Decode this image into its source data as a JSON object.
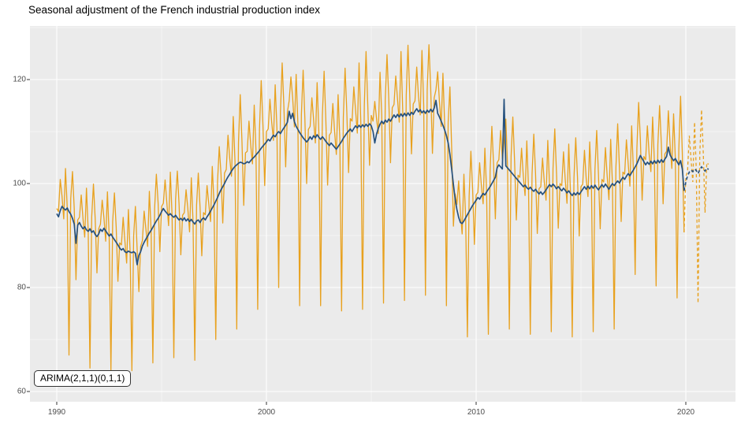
{
  "title": "Seasonal adjustment of the French industrial production index",
  "annotation": "ARIMA(2,1,1)(0,1,1)",
  "colors": {
    "panel_background": "#EBEBEB",
    "gridline": "#FFFFFF",
    "raw_series": "#E8A11E",
    "adjusted_series": "#26517E",
    "tick_text": "#4D4D4D",
    "tick_mark": "#333333",
    "title_text": "#000000"
  },
  "chart_data": {
    "type": "line",
    "title": "Seasonal adjustment of the French industrial production index",
    "annotation": "ARIMA(2,1,1)(0,1,1)",
    "xlabel": "",
    "ylabel": "",
    "x_tick_labels": [
      "1990",
      "2000",
      "2010",
      "2020"
    ],
    "y_tick_labels": [
      "120",
      "100",
      "80",
      "60"
    ],
    "x_major": [
      1990,
      2000,
      2010,
      2020
    ],
    "x_minor": [
      1995,
      2005,
      2015
    ],
    "y_major_values": [
      120,
      100,
      80,
      60
    ],
    "y_minor_values": [
      130,
      110,
      90,
      70
    ],
    "xlim": [
      1988.7,
      2022.4
    ],
    "ylim": [
      58,
      130.3
    ],
    "grid": "on",
    "legend_position": "none",
    "start_year": 1990,
    "points_per_year": 12,
    "forecast_start_year": 2020,
    "series": [
      {
        "name": "raw_unadjusted_index",
        "color": "#E8A11E",
        "style": "solid"
      },
      {
        "name": "seasonally_adjusted_index",
        "color": "#26517E",
        "style": "solid"
      },
      {
        "name": "raw_forecast",
        "color": "#E8A11E",
        "style": "dashed"
      },
      {
        "name": "seasonally_adjusted_forecast",
        "color": "#26517E",
        "style": "dashed"
      }
    ],
    "raw": [
      95.2,
      94.6,
      100.8,
      97.6,
      93.2,
      102.9,
      95.3,
      67.0,
      97.1,
      102.3,
      95.2,
      81.5,
      93.0,
      93.5,
      97.8,
      93.3,
      89.7,
      99.1,
      90.8,
      64.5,
      93.6,
      99.9,
      93.2,
      82.8,
      91.3,
      92.2,
      96.8,
      93.4,
      88.9,
      98.4,
      89.9,
      64.0,
      92.7,
      98.2,
      91.7,
      81.2,
      88.6,
      88.2,
      93.5,
      88.9,
      84.7,
      95.0,
      86.8,
      64.0,
      89.9,
      95.6,
      87.4,
      79.2,
      87.9,
      89.0,
      94.7,
      91.3,
      87.9,
      98.5,
      91.0,
      65.5,
      95.2,
      101.8,
      96.3,
      86.9,
      95.6,
      96.2,
      100.7,
      96.3,
      91.9,
      102.2,
      93.8,
      66.5,
      96.9,
      102.4,
      96.0,
      86.3,
      93.9,
      94.4,
      98.8,
      95.2,
      90.7,
      101.1,
      92.6,
      66.0,
      95.8,
      102.0,
      95.5,
      86.1,
      94.4,
      94.0,
      99.6,
      96.1,
      92.7,
      103.3,
      95.9,
      70.0,
      100.3,
      107.1,
      101.8,
      92.4,
      102.0,
      102.7,
      109.3,
      104.8,
      101.4,
      112.9,
      104.3,
      72.0,
      107.9,
      117.1,
      108.0,
      95.8,
      105.9,
      106.2,
      112.0,
      107.4,
      103.8,
      115.1,
      106.5,
      75.8,
      110.3,
      119.8,
      111.2,
      99.6,
      110.0,
      110.5,
      116.2,
      111.8,
      108.3,
      119.0,
      110.6,
      80.0,
      113.6,
      123.2,
      114.7,
      103.2,
      113.8,
      115.9,
      120.5,
      116.5,
      110.9,
      121.0,
      111.4,
      76.5,
      113.3,
      121.8,
      112.4,
      100.0,
      110.4,
      111.0,
      116.5,
      112.2,
      107.8,
      119.4,
      109.9,
      76.5,
      113.0,
      121.6,
      112.1,
      99.7,
      109.3,
      109.8,
      115.4,
      110.0,
      105.6,
      117.1,
      108.6,
      75.5,
      112.7,
      122.2,
      113.7,
      102.1,
      112.5,
      112.0,
      118.6,
      114.1,
      109.7,
      123.2,
      111.8,
      75.8,
      114.9,
      125.4,
      115.0,
      103.5,
      113.1,
      112.0,
      115.8,
      112.5,
      109.6,
      121.4,
      113.0,
      77.0,
      116.2,
      124.8,
      116.4,
      104.0,
      114.6,
      115.2,
      120.7,
      116.3,
      111.8,
      125.4,
      113.9,
      77.5,
      117.0,
      126.6,
      117.1,
      105.7,
      115.3,
      115.9,
      122.4,
      116.8,
      113.2,
      125.6,
      115.0,
      78.5,
      118.1,
      126.7,
      118.3,
      105.8,
      116.5,
      118.0,
      121.5,
      115.8,
      111.0,
      121.2,
      111.3,
      76.5,
      111.8,
      118.6,
      106.8,
      91.8,
      98.0,
      96.0,
      100.5,
      94.5,
      90.3,
      101.8,
      93.4,
      70.5,
      97.6,
      106.2,
      98.8,
      88.3,
      97.8,
      98.3,
      104.0,
      99.6,
      96.1,
      106.8,
      98.4,
      71.0,
      102.4,
      111.0,
      103.6,
      93.2,
      104.0,
      104.6,
      110.2,
      104.8,
      108.0,
      112.4,
      103.0,
      72.0,
      105.2,
      112.8,
      104.4,
      93.0,
      101.6,
      101.2,
      106.8,
      101.4,
      97.7,
      108.2,
      98.9,
      71.0,
      101.8,
      109.5,
      101.9,
      90.4,
      99.0,
      99.4,
      104.9,
      100.3,
      96.8,
      108.3,
      99.8,
      71.5,
      102.9,
      110.5,
      102.0,
      91.4,
      100.0,
      99.6,
      106.1,
      100.7,
      96.2,
      107.6,
      98.1,
      70.5,
      101.2,
      108.8,
      101.3,
      89.9,
      99.4,
      99.9,
      106.4,
      100.9,
      97.5,
      108.0,
      99.6,
      71.5,
      102.7,
      110.2,
      101.8,
      91.3,
      100.8,
      100.3,
      106.9,
      101.4,
      96.9,
      108.5,
      100.0,
      72.0,
      103.1,
      111.5,
      103.1,
      92.7,
      102.2,
      101.8,
      108.4,
      103.9,
      99.5,
      111.1,
      102.6,
      82.5,
      106.8,
      115.6,
      108.4,
      96.8,
      105.2,
      104.6,
      111.1,
      105.7,
      102.3,
      112.8,
      104.4,
      80.3,
      107.5,
      115.0,
      107.6,
      96.1,
      105.7,
      106.2,
      114.0,
      107.5,
      102.9,
      113.4,
      104.8,
      78.0,
      106.6,
      116.8,
      105.8,
      90.6
    ],
    "sa": [
      94.2,
      93.6,
      94.8,
      95.6,
      95.2,
      94.9,
      95.3,
      94.6,
      94.1,
      93.3,
      92.2,
      88.5,
      92.0,
      92.5,
      91.8,
      91.3,
      91.7,
      91.1,
      90.8,
      91.3,
      90.6,
      90.9,
      90.2,
      89.8,
      90.3,
      91.2,
      90.8,
      91.4,
      90.9,
      90.4,
      89.9,
      90.3,
      89.7,
      89.2,
      88.7,
      88.2,
      87.6,
      87.2,
      87.5,
      86.9,
      86.7,
      87.0,
      86.8,
      86.7,
      86.9,
      86.6,
      84.4,
      86.2,
      86.9,
      88.0,
      88.7,
      89.3,
      89.9,
      90.5,
      91.0,
      91.6,
      92.2,
      92.8,
      93.3,
      93.9,
      94.6,
      95.2,
      94.7,
      94.3,
      93.9,
      94.2,
      93.8,
      93.5,
      93.9,
      93.4,
      93.0,
      93.3,
      92.9,
      93.4,
      92.8,
      93.2,
      92.7,
      93.1,
      92.6,
      92.2,
      92.8,
      93.0,
      92.5,
      93.1,
      93.4,
      93.0,
      93.6,
      94.1,
      94.7,
      95.3,
      95.9,
      96.6,
      97.3,
      98.1,
      98.8,
      99.4,
      100.0,
      100.7,
      101.3,
      101.8,
      102.4,
      102.9,
      103.3,
      103.6,
      103.9,
      104.1,
      104.0,
      103.8,
      103.9,
      104.2,
      104.0,
      104.4,
      104.8,
      105.1,
      105.5,
      105.9,
      106.3,
      106.8,
      107.2,
      107.6,
      108.0,
      108.5,
      108.2,
      108.8,
      109.3,
      109.0,
      109.6,
      110.0,
      109.6,
      110.2,
      110.7,
      111.2,
      111.8,
      113.9,
      112.5,
      113.5,
      111.9,
      111.0,
      110.4,
      109.8,
      109.3,
      108.8,
      108.4,
      108.0,
      108.4,
      109.0,
      108.5,
      109.2,
      108.8,
      109.4,
      108.9,
      108.5,
      109.0,
      108.6,
      108.1,
      107.7,
      107.3,
      107.8,
      107.4,
      107.0,
      106.6,
      107.1,
      107.6,
      108.1,
      108.7,
      109.2,
      109.7,
      110.1,
      110.5,
      110.0,
      110.6,
      111.1,
      110.7,
      111.2,
      110.8,
      111.3,
      110.9,
      111.4,
      111.0,
      111.5,
      111.1,
      110.0,
      107.8,
      109.5,
      110.6,
      111.4,
      112.0,
      111.5,
      112.2,
      111.8,
      112.4,
      112.0,
      112.6,
      113.2,
      112.7,
      113.3,
      112.8,
      113.4,
      112.9,
      113.5,
      113.0,
      113.6,
      113.1,
      113.7,
      113.3,
      113.9,
      114.4,
      113.8,
      114.2,
      113.6,
      114.0,
      113.5,
      114.1,
      113.7,
      114.3,
      113.8,
      114.5,
      116.0,
      113.5,
      112.8,
      112.0,
      111.2,
      110.3,
      109.2,
      107.8,
      105.6,
      102.8,
      99.8,
      97.0,
      95.0,
      93.5,
      92.5,
      92.3,
      92.8,
      93.4,
      94.0,
      94.6,
      95.2,
      95.8,
      96.3,
      96.8,
      97.3,
      97.0,
      97.6,
      98.1,
      97.8,
      98.4,
      98.9,
      99.4,
      100.0,
      100.6,
      101.2,
      103.0,
      103.6,
      103.2,
      102.8,
      116.2,
      103.4,
      103.0,
      102.6,
      102.2,
      101.8,
      101.4,
      101.0,
      100.6,
      100.2,
      99.8,
      99.4,
      99.7,
      99.2,
      98.9,
      99.3,
      98.8,
      98.5,
      98.9,
      98.4,
      98.0,
      98.4,
      97.9,
      98.3,
      98.8,
      99.3,
      99.8,
      99.4,
      99.9,
      99.5,
      99.0,
      99.4,
      99.0,
      98.6,
      99.1,
      98.7,
      98.2,
      98.6,
      98.1,
      97.7,
      98.2,
      97.8,
      98.3,
      97.9,
      98.4,
      98.9,
      99.4,
      98.9,
      99.5,
      99.0,
      99.6,
      99.1,
      99.7,
      99.2,
      98.8,
      99.3,
      99.8,
      99.3,
      99.9,
      99.4,
      98.9,
      99.5,
      100.0,
      99.6,
      100.1,
      100.5,
      100.1,
      100.7,
      101.2,
      100.8,
      101.4,
      101.9,
      101.5,
      102.1,
      102.6,
      103.2,
      103.8,
      104.6,
      105.4,
      104.8,
      104.2,
      103.6,
      104.1,
      103.7,
      104.3,
      103.8,
      104.4,
      103.9,
      104.5,
      104.0,
      104.6,
      104.1,
      104.7,
      105.2,
      107.0,
      105.5,
      104.9,
      104.4,
      104.8,
      104.2,
      103.6,
      104.4,
      102.8,
      98.6
    ],
    "raw_forecast": [
      101.3,
      102.5,
      109.2,
      104.6,
      100.3,
      111.8,
      102.5,
      77.0,
      105.7,
      114.2,
      105.8,
      94.4,
      104.0,
      103.7
    ],
    "sa_forecast": [
      100.3,
      101.5,
      102.2,
      102.6,
      102.3,
      102.8,
      102.5,
      101.9,
      102.7,
      103.2,
      102.8,
      102.4,
      103.0,
      102.7
    ]
  }
}
